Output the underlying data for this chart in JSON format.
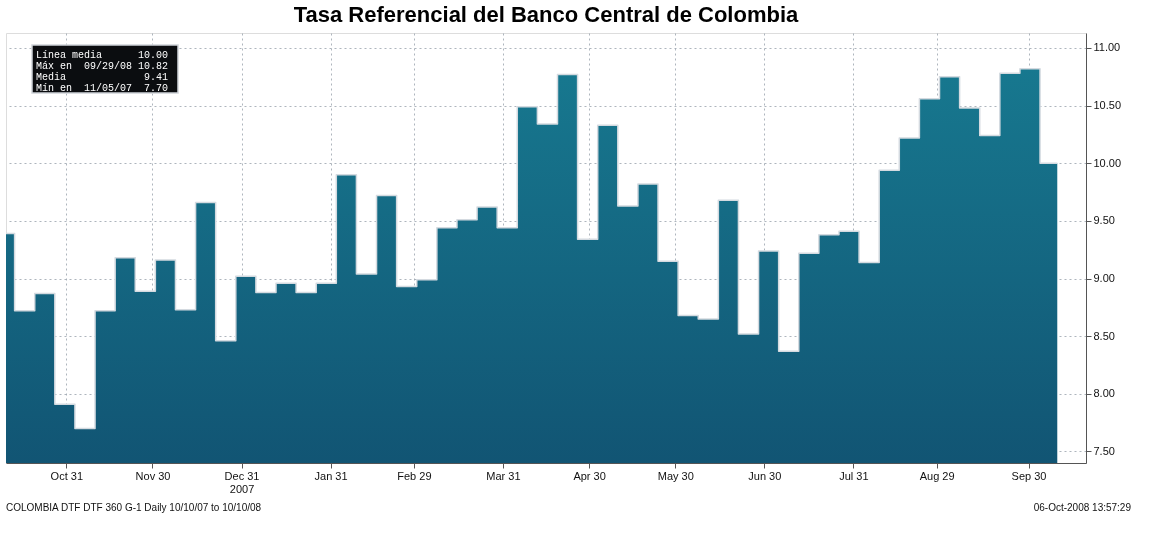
{
  "chart_data": {
    "type": "step",
    "title": "Tasa Referencial del Banco Central de Colombia",
    "x": [
      "2007-10-10",
      "2007-10-13",
      "2007-10-20",
      "2007-10-27",
      "2007-11-03",
      "2007-11-10",
      "2007-11-17",
      "2007-11-24",
      "2007-12-01",
      "2007-12-08",
      "2007-12-15",
      "2007-12-22",
      "2007-12-29",
      "2008-01-05",
      "2008-01-12",
      "2008-01-19",
      "2008-01-26",
      "2008-02-02",
      "2008-02-09",
      "2008-02-16",
      "2008-02-23",
      "2008-03-01",
      "2008-03-08",
      "2008-03-15",
      "2008-03-22",
      "2008-03-29",
      "2008-04-05",
      "2008-04-12",
      "2008-04-19",
      "2008-04-26",
      "2008-05-03",
      "2008-05-10",
      "2008-05-17",
      "2008-05-24",
      "2008-05-31",
      "2008-06-07",
      "2008-06-14",
      "2008-06-21",
      "2008-06-28",
      "2008-07-05",
      "2008-07-12",
      "2008-07-19",
      "2008-07-26",
      "2008-08-02",
      "2008-08-09",
      "2008-08-16",
      "2008-08-23",
      "2008-08-30",
      "2008-09-06",
      "2008-09-13",
      "2008-09-20",
      "2008-09-27",
      "2008-10-04",
      "2008-10-10"
    ],
    "series": [
      {
        "color": "#d4dae0",
        "values": [
          9.39,
          8.72,
          8.87,
          7.91,
          7.7,
          8.72,
          9.18,
          8.89,
          9.16,
          8.73,
          9.66,
          8.46,
          9.02,
          8.88,
          8.96,
          8.88,
          8.96,
          9.9,
          9.04,
          9.72,
          8.93,
          8.99,
          9.44,
          9.51,
          9.62,
          9.44,
          10.49,
          10.34,
          10.77,
          9.34,
          10.33,
          9.63,
          9.82,
          9.15,
          8.68,
          8.65,
          9.68,
          8.52,
          9.24,
          8.37,
          9.22,
          9.38,
          9.41,
          9.14,
          9.94,
          10.22,
          10.56,
          10.75,
          10.48,
          10.24,
          10.78,
          10.82,
          10.0,
          10.0
        ]
      }
    ],
    "xlim": [
      "2007-10-10",
      "2008-10-20"
    ],
    "xticks": [
      {
        "value": "2007-10-31",
        "label": "Oct 31"
      },
      {
        "value": "2007-11-30",
        "label": "Nov 30"
      },
      {
        "value": "2007-12-31",
        "label": "Dec 31\n2007"
      },
      {
        "value": "2008-01-31",
        "label": "Jan 31"
      },
      {
        "value": "2008-02-29",
        "label": "Feb 29"
      },
      {
        "value": "2008-03-31",
        "label": "Mar 31"
      },
      {
        "value": "2008-04-30",
        "label": "Apr 30"
      },
      {
        "value": "2008-05-30",
        "label": "May 30"
      },
      {
        "value": "2008-06-30",
        "label": "Jun 30"
      },
      {
        "value": "2008-07-31",
        "label": "Jul 31"
      },
      {
        "value": "2008-08-29",
        "label": "Aug 29"
      },
      {
        "value": "2008-09-30",
        "label": "Sep 30"
      }
    ],
    "ylim": [
      7.4,
      11.13
    ],
    "yticks": [
      {
        "value": 7.5,
        "label": "7.50"
      },
      {
        "value": 8,
        "label": "8.00"
      },
      {
        "value": 8.5,
        "label": "8.50"
      },
      {
        "value": 9,
        "label": "9.00"
      },
      {
        "value": 9.5,
        "label": "9.50"
      },
      {
        "value": 10,
        "label": "10.00"
      },
      {
        "value": 10.5,
        "label": "10.50"
      },
      {
        "value": 11,
        "label": "11.00"
      }
    ],
    "grid": true,
    "annotations": [
      "Línea media      10.00",
      "Máx en  09/29/08 10.82",
      "Media             9.41",
      "Mín en  11/05/07  7.70",
      "COLOMBIA DTF  DTF 360    G-1   Daily  10/10/07 to 10/10/08",
      "06-Oct-2008 13:57:29"
    ]
  }
}
